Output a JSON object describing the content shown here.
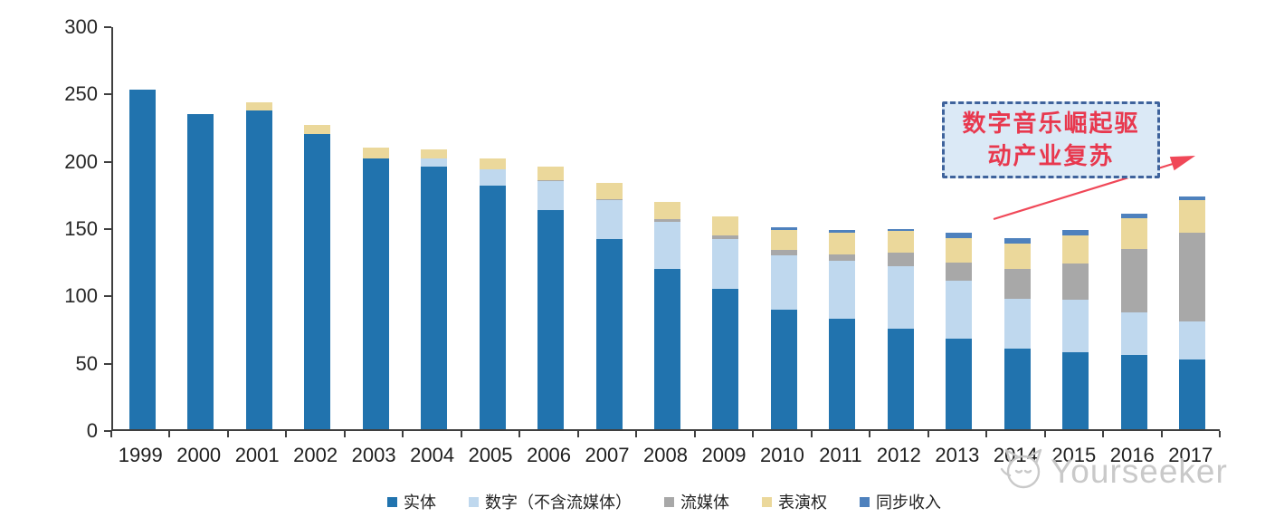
{
  "chart_data": {
    "type": "bar",
    "stacked": true,
    "categories": [
      "1999",
      "2000",
      "2001",
      "2002",
      "2003",
      "2004",
      "2005",
      "2006",
      "2007",
      "2008",
      "2009",
      "2010",
      "2011",
      "2012",
      "2013",
      "2014",
      "2015",
      "2016",
      "2017"
    ],
    "series": [
      {
        "name": "实体",
        "color": "#2173ae",
        "values": [
          252,
          234,
          237,
          219,
          201,
          195,
          181,
          163,
          141,
          119,
          104,
          89,
          82,
          75,
          67,
          60,
          57,
          55,
          52
        ]
      },
      {
        "name": "数字（不含流媒体）",
        "color": "#bfd8ee",
        "values": [
          0,
          0,
          0,
          0,
          0,
          6,
          12,
          21,
          29,
          35,
          37,
          40,
          43,
          46,
          43,
          37,
          39,
          32,
          28
        ]
      },
      {
        "name": "流媒体",
        "color": "#a8a8a8",
        "values": [
          0,
          0,
          0,
          0,
          0,
          0,
          0,
          1,
          1,
          2,
          3,
          4,
          5,
          10,
          14,
          22,
          27,
          47,
          66
        ]
      },
      {
        "name": "表演权",
        "color": "#ebd89b",
        "values": [
          0,
          0,
          6,
          7,
          8,
          7,
          8,
          10,
          12,
          13,
          14,
          15,
          16,
          16,
          18,
          19,
          21,
          23,
          24
        ]
      },
      {
        "name": "同步收入",
        "color": "#4e81bd",
        "values": [
          0,
          0,
          0,
          0,
          0,
          0,
          0,
          0,
          0,
          0,
          0,
          2,
          2,
          2,
          4,
          4,
          4,
          3,
          3
        ]
      }
    ],
    "totals": [
      252,
      234,
      243,
      226,
      209,
      208,
      201,
      195,
      183,
      169,
      158,
      150,
      148,
      149,
      146,
      142,
      148,
      160,
      173
    ],
    "ylim": [
      0,
      300
    ],
    "yticks": [
      0,
      50,
      100,
      150,
      200,
      250,
      300
    ],
    "grid": false,
    "legend_position": "bottom",
    "title": "",
    "xlabel": "",
    "ylabel": ""
  },
  "annotation": {
    "line1": "数字音乐崛起驱",
    "line2": "动产业复苏",
    "text_color": "#e8384e",
    "box_fill": "#dbe9f6",
    "box_border": "#3f639c",
    "arrow_color": "#f04858"
  },
  "watermark": {
    "text": "Yourseeker",
    "icon": "cat-logo-icon",
    "color": "#c7c7c7"
  }
}
